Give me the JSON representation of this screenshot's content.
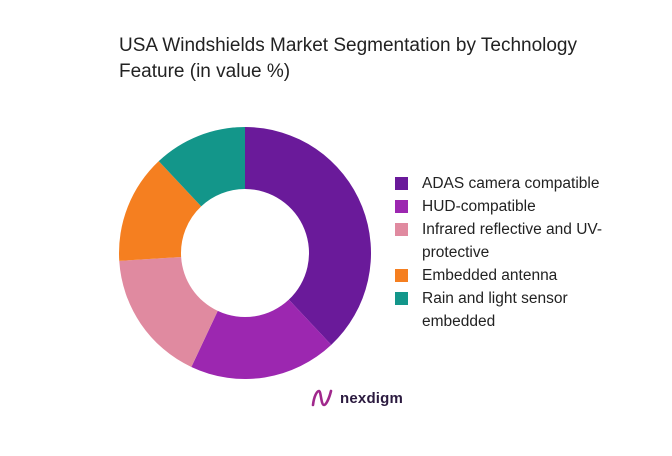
{
  "chart_data": {
    "type": "pie",
    "title_lines": [
      "USA Windshields Market Segmentation by Technology",
      "Feature (in value %)"
    ],
    "series": [
      {
        "name": "ADAS camera compatible",
        "value": 38,
        "color": "#6a1a9a"
      },
      {
        "name": "HUD-compatible",
        "value": 19,
        "color": "#9c27b0"
      },
      {
        "name": "Infrared reflective and UV-protective",
        "value": 17,
        "color": "#e08aa0"
      },
      {
        "name": "Embedded antenna",
        "value": 14,
        "color": "#f57f20"
      },
      {
        "name": "Rain and light sensor embedded",
        "value": 12,
        "color": "#13968a"
      }
    ],
    "legend_lines": [
      [
        "ADAS camera compatible"
      ],
      [
        "HUD-compatible"
      ],
      [
        "Infrared reflective and UV-",
        "protective"
      ],
      [
        "Embedded antenna"
      ],
      [
        "Rain and light sensor",
        "embedded"
      ]
    ],
    "legend_position": "right",
    "donut": true
  },
  "brand": {
    "name": "nexdigm",
    "icon": "nexdigm-logo-icon",
    "color": "#a0288c"
  }
}
